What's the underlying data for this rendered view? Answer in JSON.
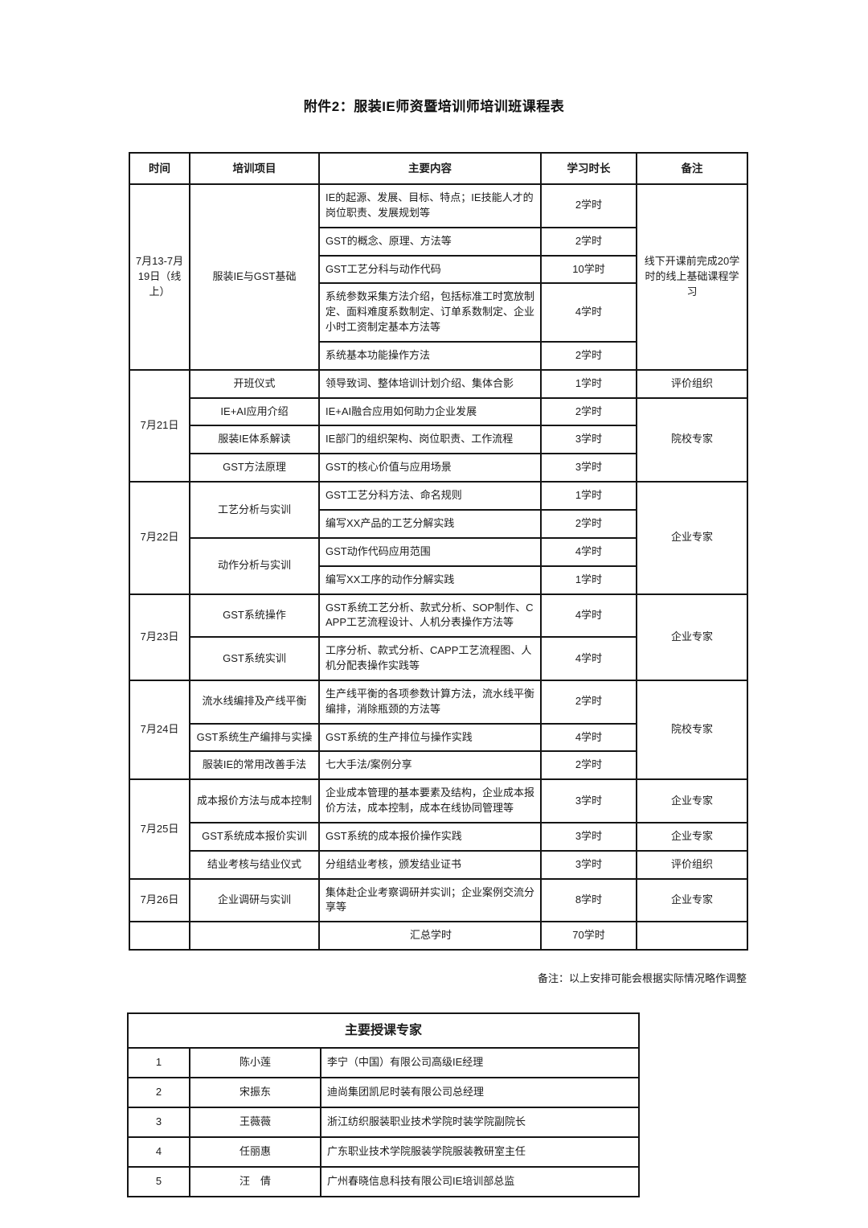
{
  "page": {
    "title": "附件2：服装IE师资暨培训师培训班课程表",
    "footnote": "备注：以上安排可能会根据实际情况略作调整"
  },
  "schedule_table": {
    "headers": [
      "时间",
      "培训项目",
      "主要内容",
      "学习时长",
      "备注"
    ],
    "rows": [
      {
        "time": {
          "text": "7月13-7月19日（线上）",
          "span": 5
        },
        "project": {
          "text": "服装IE与GST基础",
          "span": 5
        },
        "content": "IE的起源、发展、目标、特点；IE技能人才的岗位职责、发展规划等",
        "duration": "2学时",
        "remark": {
          "text": "线下开课前完成20学时的线上基础课程学习",
          "span": 5
        }
      },
      {
        "content": "GST的概念、原理、方法等",
        "duration": "2学时"
      },
      {
        "content": "GST工艺分科与动作代码",
        "duration": "10学时"
      },
      {
        "content": "系统参数采集方法介绍，包括标准工时宽放制定、面料难度系数制定、订单系数制定、企业小时工资制定基本方法等",
        "duration": "4学时"
      },
      {
        "content": "系统基本功能操作方法",
        "duration": "2学时"
      },
      {
        "time": {
          "text": "7月21日",
          "span": 4
        },
        "project": "开班仪式",
        "content": "领导致词、整体培训计划介绍、集体合影",
        "duration": "1学时",
        "remark": "评价组织"
      },
      {
        "project": "IE+AI应用介绍",
        "content": "IE+AI融合应用如何助力企业发展",
        "duration": "2学时",
        "remark": {
          "text": "院校专家",
          "span": 3
        }
      },
      {
        "project": "服装IE体系解读",
        "content": "IE部门的组织架构、岗位职责、工作流程",
        "duration": "3学时"
      },
      {
        "project": "GST方法原理",
        "content": "GST的核心价值与应用场景",
        "duration": "3学时"
      },
      {
        "time": {
          "text": "7月22日",
          "span": 4
        },
        "project": {
          "text": "工艺分析与实训",
          "span": 2
        },
        "content": "GST工艺分科方法、命名规则",
        "duration": "1学时",
        "remark": {
          "text": "企业专家",
          "span": 4
        }
      },
      {
        "content": "编写XX产品的工艺分解实践",
        "duration": "2学时"
      },
      {
        "project": {
          "text": "动作分析与实训",
          "span": 2
        },
        "content": "GST动作代码应用范围",
        "duration": "4学时"
      },
      {
        "content": "编写XX工序的动作分解实践",
        "duration": "1学时"
      },
      {
        "time": {
          "text": "7月23日",
          "span": 2
        },
        "project": "GST系统操作",
        "content": "GST系统工艺分析、款式分析、SOP制作、CAPP工艺流程设计、人机分表操作方法等",
        "duration": "4学时",
        "remark": {
          "text": "企业专家",
          "span": 2
        }
      },
      {
        "project": "GST系统实训",
        "content": "工序分析、款式分析、CAPP工艺流程图、人机分配表操作实践等",
        "duration": "4学时"
      },
      {
        "time": {
          "text": "7月24日",
          "span": 3
        },
        "project": "流水线编排及产线平衡",
        "content": "生产线平衡的各项参数计算方法，流水线平衡编排，消除瓶颈的方法等",
        "duration": "2学时",
        "remark": {
          "text": "院校专家",
          "span": 3
        }
      },
      {
        "project": "GST系统生产编排与实操",
        "content": "GST系统的生产排位与操作实践",
        "duration": "4学时"
      },
      {
        "project": "服装IE的常用改善手法",
        "content": "七大手法/案例分享",
        "duration": "2学时"
      },
      {
        "time": {
          "text": "7月25日",
          "span": 3
        },
        "project": "成本报价方法与成本控制",
        "content": "企业成本管理的基本要素及结构，企业成本报价方法，成本控制，成本在线协同管理等",
        "duration": "3学时",
        "remark": "企业专家"
      },
      {
        "project": "GST系统成本报价实训",
        "content": "GST系统的成本报价操作实践",
        "duration": "3学时",
        "remark": "企业专家"
      },
      {
        "project": "结业考核与结业仪式",
        "content": "分组结业考核，颁发结业证书",
        "duration": "3学时",
        "remark": "评价组织"
      },
      {
        "time": "7月26日",
        "project": "企业调研与实训",
        "content": "集体赴企业考察调研并实训；企业案例交流分享等",
        "duration": "8学时",
        "remark": "企业专家"
      },
      {
        "time": "",
        "project": "",
        "content": "汇总学时",
        "duration": "70学时",
        "remark": "",
        "center": true
      }
    ]
  },
  "experts_table": {
    "title": "主要授课专家",
    "rows": [
      {
        "no": "1",
        "name": "陈小莲",
        "title": "李宁（中国）有限公司高级IE经理"
      },
      {
        "no": "2",
        "name": "宋振东",
        "title": "迪尚集团凯尼时装有限公司总经理"
      },
      {
        "no": "3",
        "name": "王薇薇",
        "title": "浙江纺织服装职业技术学院时装学院副院长"
      },
      {
        "no": "4",
        "name": "任丽惠",
        "title": "广东职业技术学院服装学院服装教研室主任"
      },
      {
        "no": "5",
        "name": "汪　倩",
        "title": "广州春晓信息科技有限公司IE培训部总监"
      }
    ]
  }
}
